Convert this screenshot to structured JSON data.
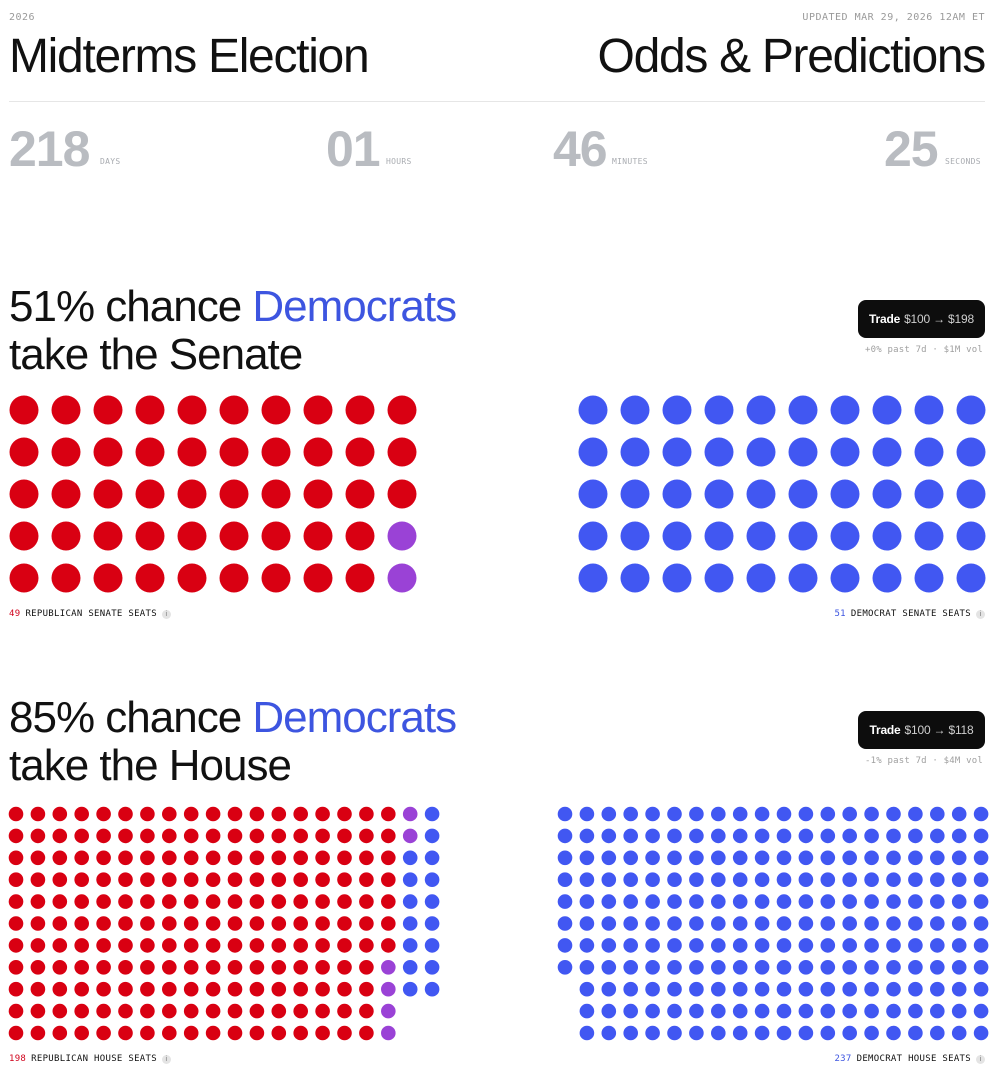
{
  "header": {
    "year": "2026",
    "updated": "UPDATED MAR 29, 2026 12AM ET",
    "title_left": "Midterms Election",
    "title_right": "Odds & Predictions"
  },
  "countdown": {
    "days": "218",
    "days_label": "DAYS",
    "hours": "01",
    "hours_label": "HOURS",
    "minutes": "46",
    "minutes_label": "MINUTES",
    "seconds": "25",
    "seconds_label": "SECONDS"
  },
  "senate": {
    "headline_prefix": "51% chance ",
    "headline_party": "Democrats",
    "headline_suffix": "take the Senate",
    "trade_label": "Trade",
    "trade_amount": "$100 → $198",
    "stats": "+0% past 7d · $1M vol",
    "republican_seats": "49",
    "republican_label": "REPUBLICAN SENATE SEATS",
    "democrat_seats": "51",
    "democrat_label": "DEMOCRAT SENATE SEATS",
    "purple_seats": 2
  },
  "house": {
    "headline_prefix": "85% chance ",
    "headline_party": "Democrats",
    "headline_suffix": "take the House",
    "trade_label": "Trade",
    "trade_amount": "$100 → $118",
    "stats": "-1% past 7d · $4M vol",
    "republican_seats": "198",
    "republican_label": "REPUBLICAN HOUSE SEATS",
    "democrat_seats": "237",
    "democrat_label": "DEMOCRAT HOUSE SEATS",
    "purple_seats": 8
  },
  "colors": {
    "republican": "#d90012",
    "democrat": "#4157f2",
    "tossup": "#9a42d6",
    "dem_text": "#3d55e0"
  },
  "icons": {
    "info": "info-icon"
  }
}
